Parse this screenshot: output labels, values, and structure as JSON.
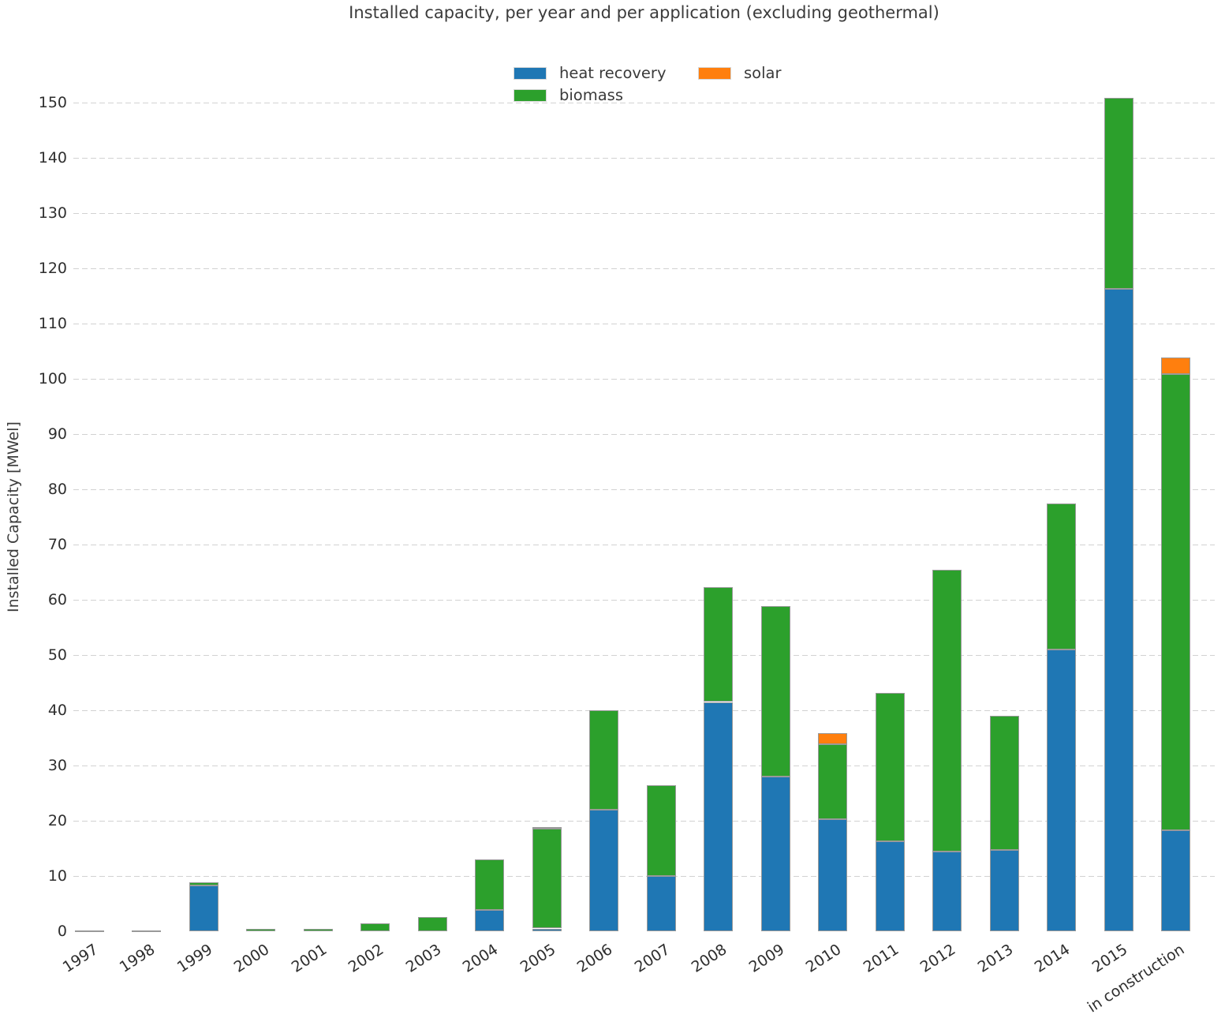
{
  "title": "Installed capacity, per year and per application (excluding geothermal)",
  "chart_data": {
    "type": "bar",
    "stacked": true,
    "title": "Installed capacity, per year and per application (excluding geothermal)",
    "xlabel": "",
    "ylabel": "Installed Capacity [MWel]",
    "ylim": [
      0,
      155
    ],
    "yticks": [
      0,
      10,
      20,
      30,
      40,
      50,
      60,
      70,
      80,
      90,
      100,
      110,
      120,
      130,
      140,
      150
    ],
    "grid": "horizontal-dashed",
    "legend_position": "top-center",
    "categories": [
      "1997",
      "1998",
      "1999",
      "2000",
      "2001",
      "2002",
      "2003",
      "2004",
      "2005",
      "2006",
      "2007",
      "2008",
      "2009",
      "2010",
      "2011",
      "2012",
      "2013",
      "2014",
      "2015",
      "in construction"
    ],
    "series": [
      {
        "name": "heat recovery",
        "color": "#1f77b4",
        "values": [
          0,
          0,
          8.3,
          0,
          0,
          0,
          0,
          3.9,
          0.5,
          22.0,
          10.0,
          41.5,
          28.0,
          20.3,
          16.3,
          14.4,
          14.7,
          51.0,
          116.3,
          18.3
        ]
      },
      {
        "name": "biomass",
        "color": "#2ca02c",
        "values": [
          0.1,
          0.1,
          0.5,
          0.4,
          0.5,
          1.5,
          2.6,
          9.1,
          18.1,
          18.0,
          16.4,
          20.8,
          30.8,
          13.6,
          26.8,
          51.0,
          24.3,
          26.5,
          34.5,
          82.6
        ]
      },
      {
        "name": "solar",
        "color": "#ff7f0e",
        "values": [
          0,
          0,
          0,
          0,
          0,
          0,
          0,
          0,
          0.2,
          0,
          0,
          0,
          0,
          2.0,
          0,
          0,
          0,
          0,
          0,
          3.0
        ]
      }
    ]
  }
}
